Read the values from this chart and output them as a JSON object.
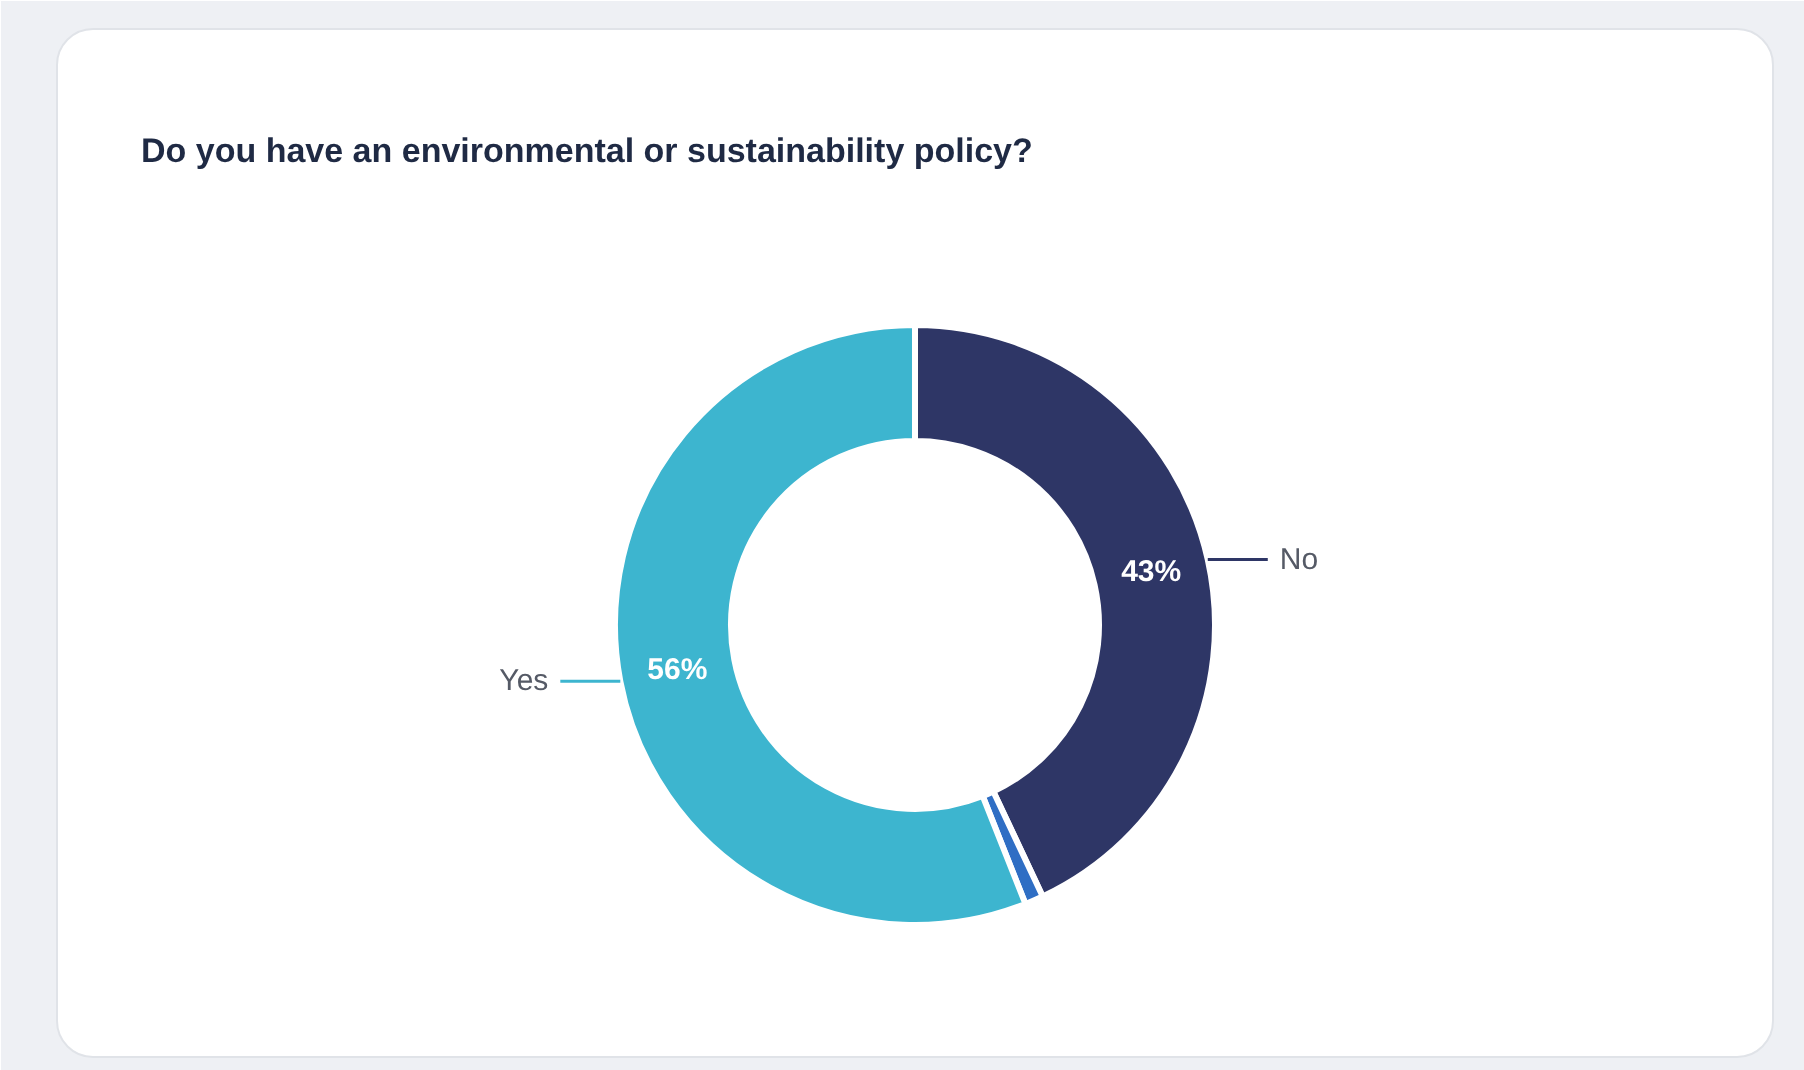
{
  "chart_data": {
    "type": "donut",
    "title": "Do you have an environmental or sustainability policy?",
    "categories": [
      "No",
      null,
      "Yes"
    ],
    "values": [
      43,
      1,
      56
    ],
    "colors": [
      "#2e3666",
      "#2f6ec4",
      "#3db5cf"
    ],
    "value_labels": [
      "43%",
      null,
      "56%"
    ]
  }
}
